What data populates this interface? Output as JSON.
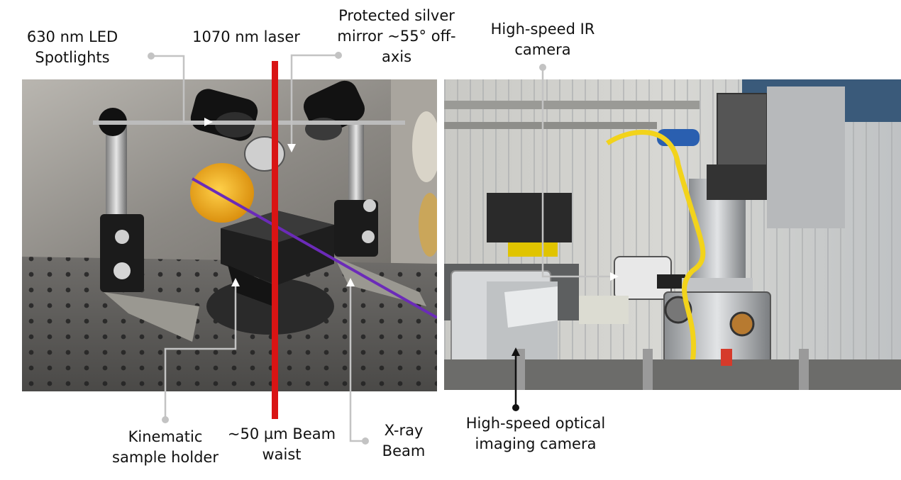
{
  "figure": {
    "labels": {
      "led_spotlights": "630 nm LED\nSpotlights",
      "laser": "1070 nm laser",
      "mirror": "Protected silver\nmirror ~55° off-\naxis",
      "ir_camera": "High-speed IR\ncamera",
      "sample_holder": "Kinematic\nsample holder",
      "beam_waist": "~50 µm Beam\nwaist",
      "xray_beam": "X-ray\nBeam",
      "optical_camera": "High-speed optical\nimaging camera"
    },
    "colors": {
      "laser_beam": "#d91414",
      "xray_beam": "#6b2bb8",
      "leader_line": "#bdbdbd",
      "leader_line_dark": "#111111",
      "mirror_disc": "#f2b21a"
    }
  }
}
